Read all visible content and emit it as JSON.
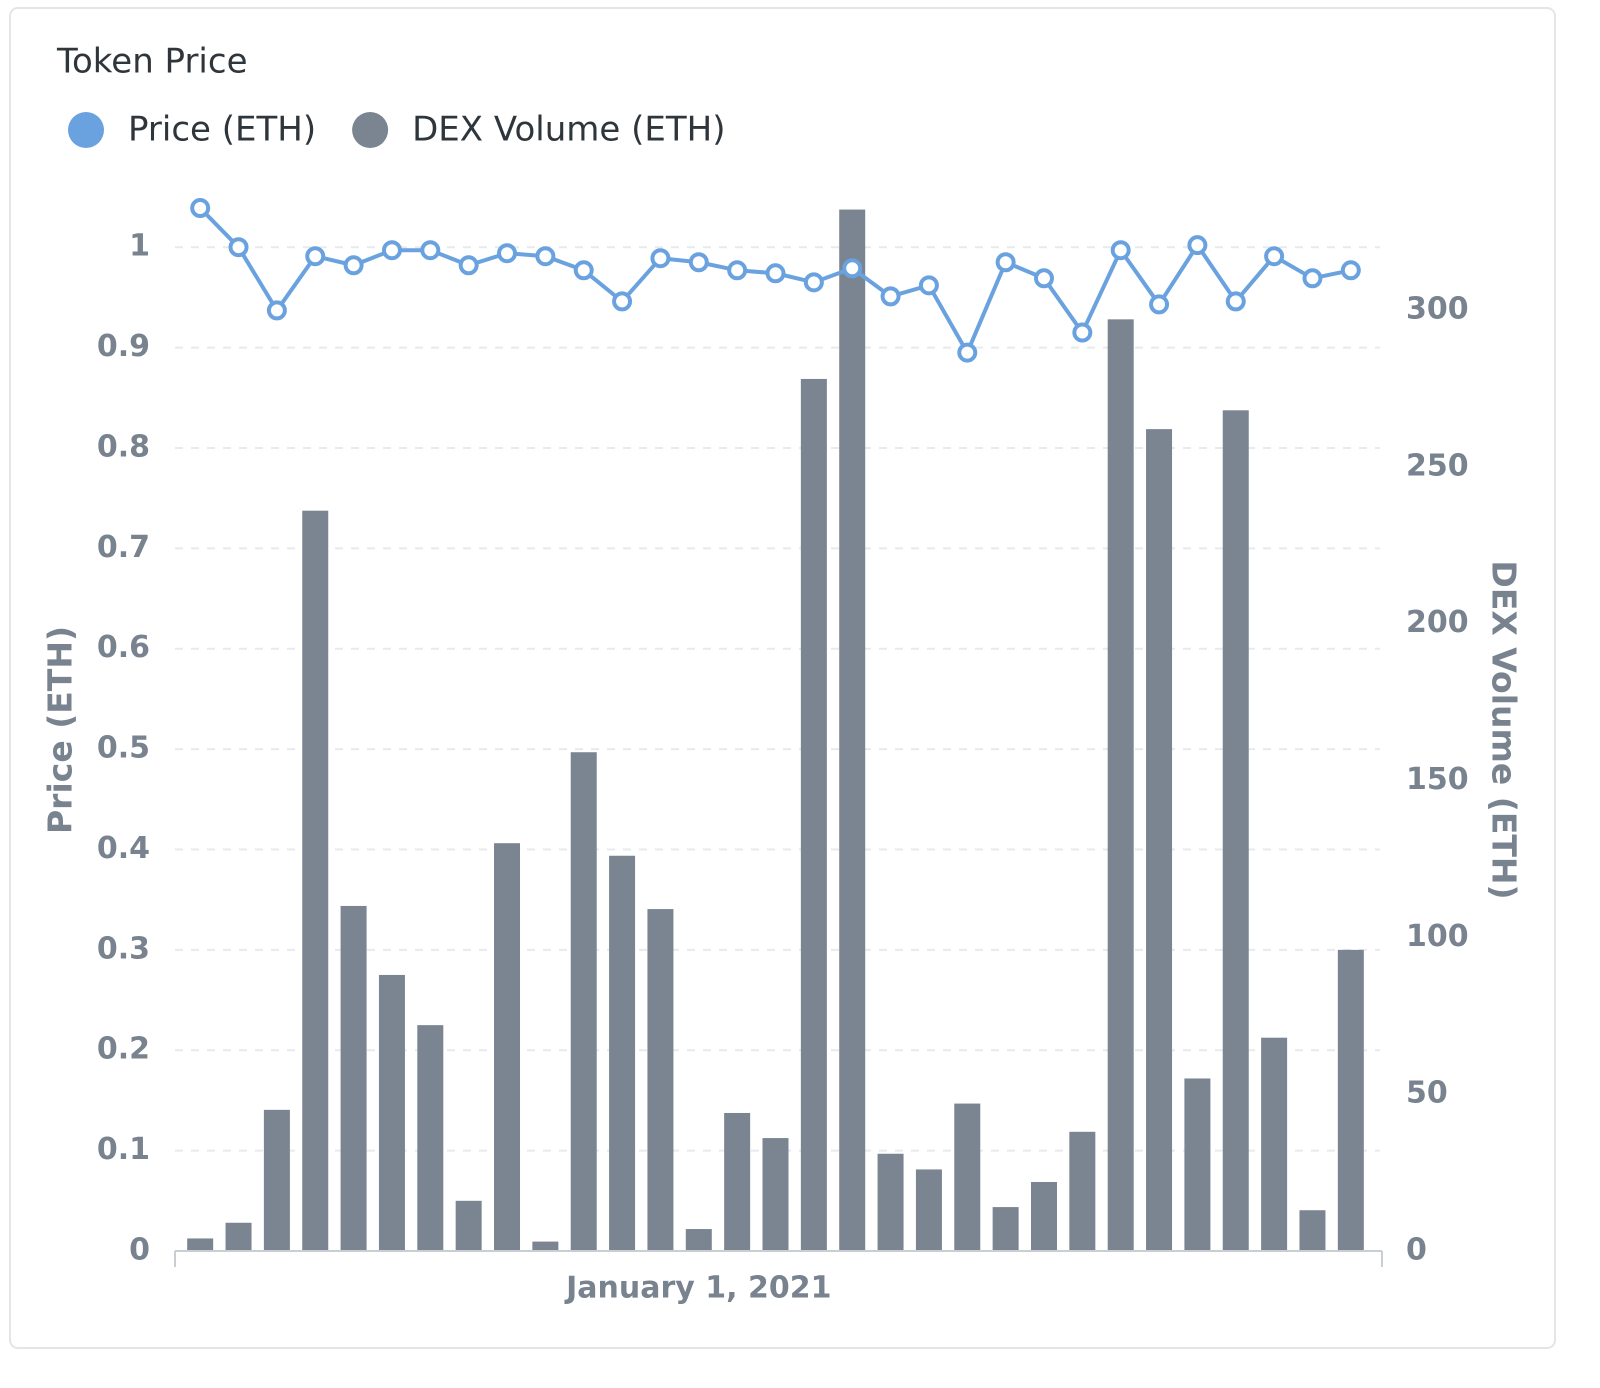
{
  "chart_data": {
    "type": "bar_line",
    "title": "Token Price",
    "categories": [
      null,
      null,
      null,
      null,
      null,
      null,
      null,
      null,
      null,
      null,
      null,
      null,
      null,
      "January 1, 2021",
      null,
      null,
      null,
      null,
      null,
      null,
      null,
      null,
      null,
      null,
      null,
      null,
      null,
      null,
      null,
      null,
      null
    ],
    "series": [
      {
        "name": "Price (ETH)",
        "color": "#6aa2e0",
        "type": "line",
        "axis": "y",
        "values": [
          1.039,
          1.0,
          0.937,
          0.991,
          0.982,
          0.997,
          0.997,
          0.982,
          0.994,
          0.991,
          0.977,
          0.946,
          0.989,
          0.985,
          0.977,
          0.974,
          0.965,
          0.979,
          0.951,
          0.962,
          0.895,
          0.985,
          0.969,
          0.915,
          0.997,
          0.943,
          1.002,
          0.946,
          0.991,
          0.969,
          0.977
        ]
      },
      {
        "name": "DEX Volume (ETH)",
        "color": "#7a8591",
        "type": "bar",
        "axis": "y2",
        "values": [
          4,
          9,
          45,
          236,
          110,
          88,
          72,
          16,
          130,
          3,
          159,
          126,
          109,
          7,
          44,
          36,
          278,
          332,
          31,
          26,
          47,
          14,
          22,
          38,
          297,
          262,
          55,
          268,
          68,
          13,
          96
        ]
      }
    ],
    "y_label": "Price (ETH)",
    "y2_label": "DEX Volume (ETH)",
    "ylim": [
      0,
      1.05
    ],
    "yticks": [
      0,
      0.1,
      0.2,
      0.3,
      0.4,
      0.5,
      0.6,
      0.7,
      0.8,
      0.9,
      1
    ],
    "y2lim": [
      0,
      336
    ],
    "y2ticks": [
      0,
      50,
      100,
      150,
      200,
      250,
      300
    ],
    "grid": true,
    "legend": "top-left"
  }
}
